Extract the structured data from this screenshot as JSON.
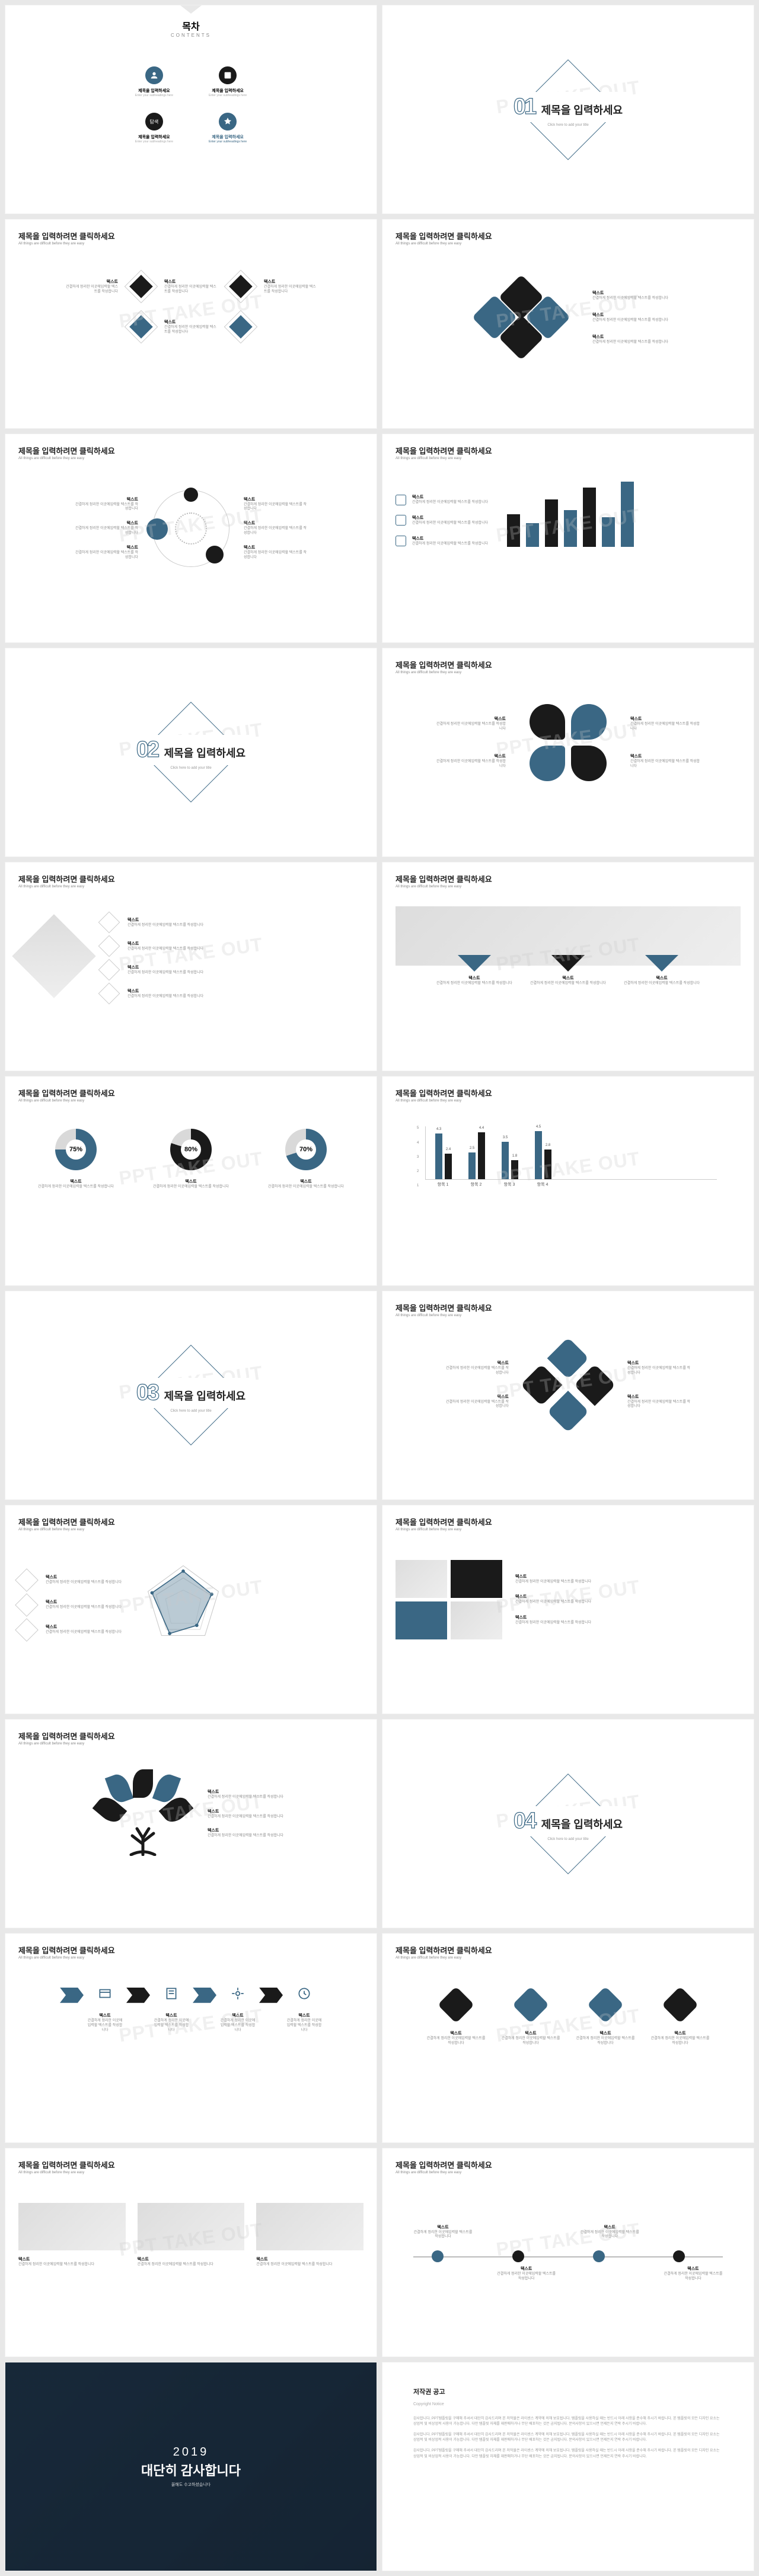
{
  "watermark": "PPT TAKE OUT",
  "colors": {
    "accent": "#3a6784",
    "dark": "#1a1a1a",
    "gray": "#d9d9d9",
    "lightgray": "#e8e8e8",
    "text": "#222222",
    "muted": "#888888"
  },
  "common": {
    "slide_title": "제목을 입력하려면 클릭하세요",
    "slide_sub": "All things are difficult before they are easy",
    "text_heading": "텍스트",
    "text_body": "간결하게 정리한 이곳에입력할 텍스트를 작성합니다"
  },
  "slide01": {
    "title": "목차",
    "subtitle": "CONTENTS",
    "item_label": "제목을 입력하세요",
    "item_sub": "Enter your subheadings here"
  },
  "slide02": {
    "num": "01",
    "title": "제목을 입력하세요",
    "sub": "Click here to add your title"
  },
  "barChart1": {
    "values": [
      55,
      40,
      80,
      62,
      100,
      50,
      110
    ],
    "colors": [
      "#1a1a1a",
      "#3a6784",
      "#1a1a1a",
      "#3a6784",
      "#1a1a1a",
      "#3a6784",
      "#3a6784"
    ],
    "max": 110
  },
  "slide08": {
    "num": "02",
    "title": "제목을 입력하세요",
    "sub": "Click here to add your title"
  },
  "donuts": [
    {
      "pct": 75,
      "label": "75%",
      "color": "#3a6784"
    },
    {
      "pct": 80,
      "label": "80%",
      "color": "#1a1a1a"
    },
    {
      "pct": 70,
      "label": "70%",
      "color": "#3a6784"
    }
  ],
  "groupedBars": {
    "ymax": 5,
    "yticks": [
      "5",
      "4",
      "3",
      "2",
      "1"
    ],
    "categories": [
      "항목 1",
      "항목 2",
      "항목 3",
      "항목 4"
    ],
    "series": [
      {
        "values": [
          4.3,
          2.5,
          3.5,
          4.5
        ],
        "color": "#3a6784"
      },
      {
        "values": [
          2.4,
          4.4,
          1.8,
          2.8
        ],
        "color": "#1a1a1a"
      }
    ],
    "labels_top": [
      "4.3",
      "2.5",
      "3.5",
      "4.5",
      "2.4",
      "4.4",
      "1.8",
      "2.8"
    ]
  },
  "slide13": {
    "num": "03",
    "title": "제목을 입력하세요",
    "sub": "Click here to add your title"
  },
  "slide18": {
    "num": "04",
    "title": "제목을 입력하세요",
    "sub": "Click here to add your title"
  },
  "thankyou": {
    "year": "2019",
    "message": "대단히 감사합니다",
    "sub": "올해도 수고하셨습니다"
  },
  "copyright": {
    "title": "저작권 공고",
    "sub": "Copyright Notice",
    "body": "감사합니다. PPT템플릿을 구매해 주셔서 대단히 감사드리며 본 저작물은 라이센스 계약에 의해 보호됩니다. 템플릿을 사용하실 때는 반드시 아래 사항을 준수해 주시기 바랍니다. 본 템플릿의 모든 디자인 요소는 상업적 및 비상업적 사용이 가능합니다. 다만 템플릿 자체를 재판매하거나 무단 배포하는 것은 금지됩니다. 문의사항이 있으시면 언제든지 연락 주시기 바랍니다."
  }
}
